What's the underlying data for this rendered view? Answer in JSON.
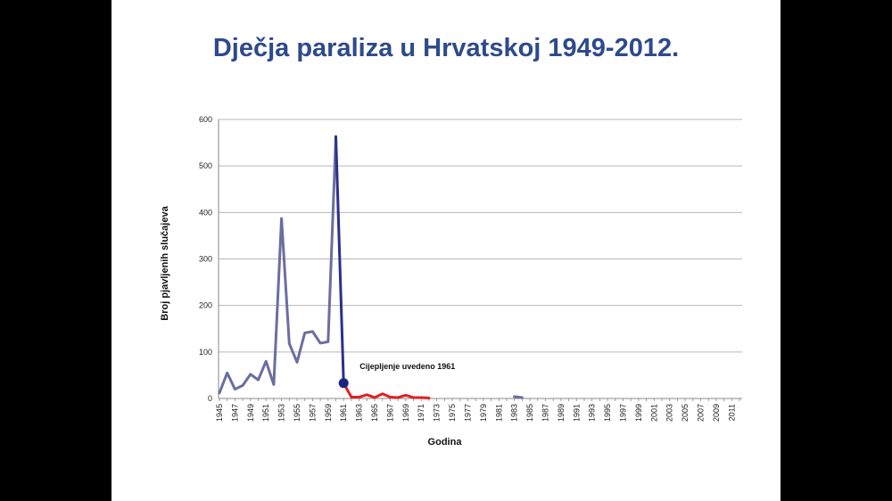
{
  "slide": {
    "title": "Dječja paraliza u Hrvatskoj 1949-2012."
  },
  "chart_data": {
    "type": "line",
    "title": "Dječja paraliza u Hrvatskoj 1949-2012.",
    "xlabel": "Godina",
    "ylabel": "Broj pjavljenih slučajeva",
    "ylim": [
      0,
      600
    ],
    "yticks": [
      0,
      100,
      200,
      300,
      400,
      500,
      600
    ],
    "xlim": [
      1945,
      2012
    ],
    "xtick_labels": [
      "1945",
      "1947",
      "1949",
      "1951",
      "1953",
      "1955",
      "1957",
      "1959",
      "1961",
      "1963",
      "1965",
      "1967",
      "1969",
      "1971",
      "1973",
      "1975",
      "1977",
      "1979",
      "1981",
      "1983",
      "1985",
      "1987",
      "1989",
      "1991",
      "1993",
      "1995",
      "1997",
      "1999",
      "2001",
      "2003",
      "2005",
      "2007",
      "2009",
      "2011"
    ],
    "grid": true,
    "series": [
      {
        "color": "#6a6ea0",
        "x": [
          1945,
          1946,
          1947,
          1948,
          1949,
          1950,
          1951,
          1952,
          1953,
          1954,
          1955,
          1956,
          1957,
          1958,
          1959,
          1960
        ],
        "values": [
          12,
          55,
          20,
          28,
          52,
          40,
          80,
          30,
          387,
          118,
          78,
          141,
          144,
          119,
          122,
          563
        ]
      },
      {
        "color": "#2a2f8f",
        "x": [
          1960,
          1961
        ],
        "values": [
          563,
          33
        ]
      },
      {
        "color": "#e02020",
        "x": [
          1961,
          1962,
          1963,
          1964,
          1965,
          1966,
          1967,
          1968,
          1969,
          1970,
          1971,
          1972
        ],
        "values": [
          33,
          3,
          3,
          8,
          2,
          10,
          3,
          2,
          7,
          2,
          2,
          1
        ]
      },
      {
        "color": "#6a6ea0",
        "x": [
          1983,
          1984
        ],
        "values": [
          4,
          2
        ]
      }
    ],
    "annotations": [
      {
        "text": "Cijepljenje uvedeno 1961",
        "x": 1961,
        "y": 33,
        "color": "#1a2580"
      }
    ]
  }
}
